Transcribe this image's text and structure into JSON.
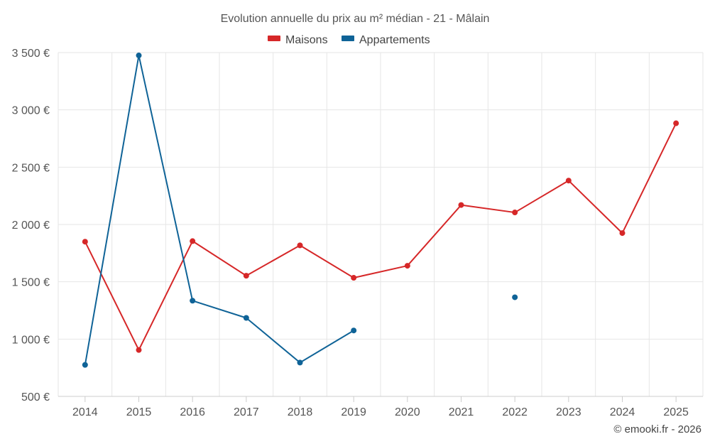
{
  "chart_data": {
    "type": "line",
    "title": "Evolution annuelle du prix au m² médian - 21 - Mâlain",
    "categories": [
      "2014",
      "2015",
      "2016",
      "2017",
      "2018",
      "2019",
      "2020",
      "2021",
      "2022",
      "2023",
      "2024",
      "2025"
    ],
    "series": [
      {
        "name": "Maisons",
        "color": "#d62728",
        "values": [
          1850,
          905,
          1855,
          1553,
          1818,
          1535,
          1640,
          2170,
          2105,
          2383,
          1925,
          2883
        ]
      },
      {
        "name": "Appartements",
        "color": "#0f6397",
        "values": [
          775,
          3475,
          1335,
          1185,
          795,
          1075,
          null,
          null,
          1365,
          null,
          null,
          null
        ]
      }
    ],
    "ylim": [
      500,
      3500
    ],
    "yticks": [
      500,
      1000,
      1500,
      2000,
      2500,
      3000,
      3500
    ],
    "ytick_labels": [
      "500 €",
      "1 000 €",
      "1 500 €",
      "2 000 €",
      "2 500 €",
      "3 000 €",
      "3 500 €"
    ],
    "xlabel": "",
    "ylabel": "",
    "legend_position": "top-center",
    "grid": true
  },
  "credit": "© emooki.fr - 2026"
}
